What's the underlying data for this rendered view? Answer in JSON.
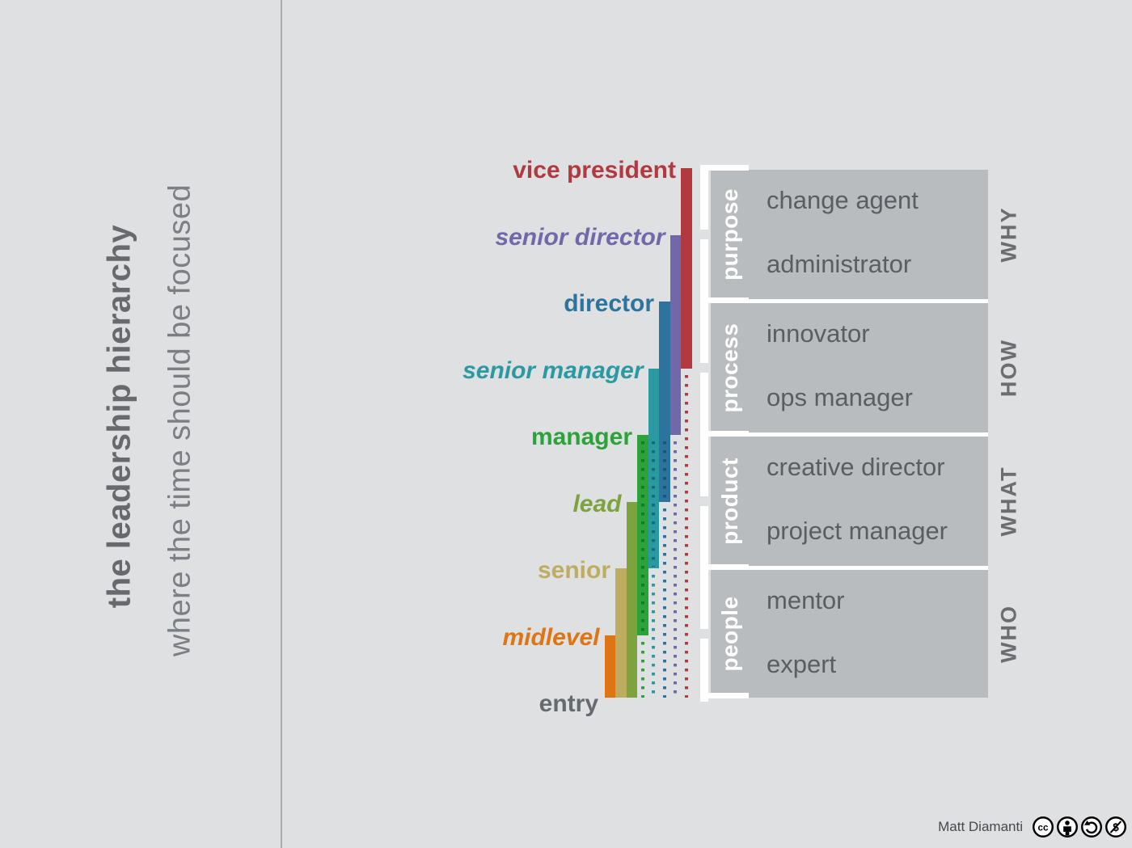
{
  "sidebar": {
    "title": "the leadership hierarchy",
    "subtitle": "where the time should be focused"
  },
  "palette": {
    "background": "#dee0e2",
    "box": "#b9bcbf",
    "bracket": "#ffffff",
    "divider": "#a7aaad",
    "title_text": "#67696d",
    "subtitle_text": "#7b7e82",
    "role_text": "#5a5d61",
    "question_text": "#6b6e71",
    "band_text": "#ffffff",
    "credit_text": "#46494d"
  },
  "chart_data": {
    "type": "hierarchy-time-diagram",
    "description": "each leadership level has a solid bar spanning the three levels below it, then a dotted line continuing to the entry baseline",
    "levels": [
      {
        "label": "vice president",
        "italic": false,
        "color": "#b13a41",
        "has_bar": true
      },
      {
        "label": "senior director",
        "italic": true,
        "color": "#7168aa",
        "has_bar": true
      },
      {
        "label": "director",
        "italic": false,
        "color": "#2c739e",
        "has_bar": true,
        "dot_dark": "#1c5478"
      },
      {
        "label": "senior manager",
        "italic": true,
        "color": "#2b99a1",
        "has_bar": true,
        "dot_dark": "#196b72"
      },
      {
        "label": "manager",
        "italic": false,
        "color": "#2ea23a",
        "has_bar": true,
        "dot_dark": "#157c24"
      },
      {
        "label": "lead",
        "italic": true,
        "color": "#7ca33e",
        "has_bar": true
      },
      {
        "label": "senior",
        "italic": false,
        "color": "#beac60",
        "has_bar": true
      },
      {
        "label": "midlevel",
        "italic": true,
        "color": "#de7412",
        "has_bar": true
      },
      {
        "label": "entry",
        "italic": false,
        "color": "#66696e",
        "has_bar": false
      }
    ],
    "groups": [
      {
        "band": "purpose",
        "question": "WHY",
        "roles": [
          "change agent",
          "administrator"
        ]
      },
      {
        "band": "process",
        "question": "HOW",
        "roles": [
          "innovator",
          "ops manager"
        ]
      },
      {
        "band": "product",
        "question": "WHAT",
        "roles": [
          "creative director",
          "project manager"
        ]
      },
      {
        "band": "people",
        "question": "WHO",
        "roles": [
          "mentor",
          "expert"
        ]
      }
    ]
  },
  "footer": {
    "credit": "Matt Diamanti",
    "license_icons": [
      "cc",
      "by",
      "sa",
      "nc"
    ]
  }
}
